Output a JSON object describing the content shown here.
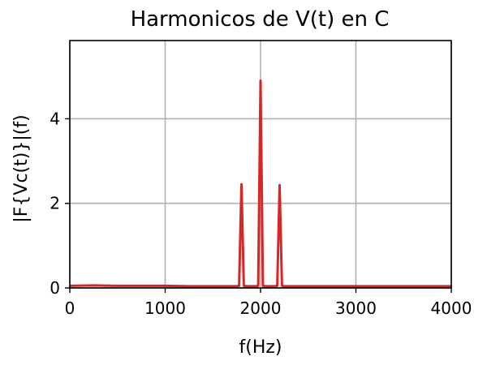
{
  "chart_data": {
    "type": "line",
    "title": "Harmonicos de V(t) en C",
    "xlabel": "f(Hz)",
    "ylabel": "|F{Vc(t)}|(f)",
    "xlim": [
      0,
      4000
    ],
    "ylim": [
      0,
      5.85
    ],
    "x_ticks": [
      0,
      1000,
      2000,
      3000,
      4000
    ],
    "x_tick_labels": [
      "0",
      "1000",
      "2000",
      "3000",
      "4000"
    ],
    "y_ticks": [
      0,
      2,
      4
    ],
    "y_tick_labels": [
      "0",
      "2",
      "4"
    ],
    "grid": true,
    "series": [
      {
        "color": "#d62728",
        "x": [
          0,
          250,
          500,
          750,
          1000,
          1250,
          1500,
          1750,
          1775,
          1800,
          1825,
          1850,
          1950,
          1975,
          2000,
          2025,
          2050,
          2150,
          2175,
          2200,
          2225,
          2250,
          2500,
          2750,
          3000,
          3250,
          3500,
          3750,
          4000
        ],
        "y": [
          0.05,
          0.06,
          0.05,
          0.05,
          0.05,
          0.04,
          0.04,
          0.04,
          0.05,
          2.45,
          0.05,
          0.04,
          0.04,
          0.05,
          4.9,
          0.05,
          0.04,
          0.04,
          0.05,
          2.43,
          0.05,
          0.04,
          0.04,
          0.04,
          0.04,
          0.04,
          0.04,
          0.04,
          0.04
        ]
      }
    ]
  }
}
